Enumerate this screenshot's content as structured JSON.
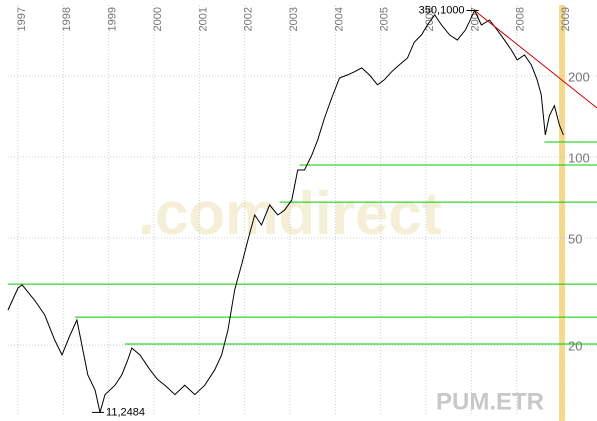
{
  "chart_data": {
    "type": "line",
    "symbol": "PUM.ETR",
    "watermark": ".comdirect",
    "log_scale": true,
    "grid": true,
    "color": "#000000",
    "x": [
      1996.78,
      1997.0,
      1997.09,
      1997.37,
      1997.59,
      1997.81,
      1997.97,
      1998.15,
      1998.3,
      1998.41,
      1998.54,
      1998.7,
      1998.81,
      1998.92,
      1999.14,
      1999.29,
      1999.42,
      1999.51,
      1999.69,
      1999.91,
      2000.08,
      2000.24,
      2000.46,
      2000.68,
      2000.9,
      2001.12,
      2001.34,
      2001.49,
      2001.63,
      2001.78,
      2001.93,
      2002.07,
      2002.22,
      2002.37,
      2002.55,
      2002.73,
      2002.88,
      2003.04,
      2003.17,
      2003.32,
      2003.48,
      2003.61,
      2003.76,
      2003.92,
      2004.09,
      2004.27,
      2004.42,
      2004.58,
      2004.75,
      2004.93,
      2005.08,
      2005.24,
      2005.41,
      2005.59,
      2005.74,
      2005.9,
      2006.03,
      2006.19,
      2006.34,
      2006.52,
      2006.69,
      2006.87,
      2007.07,
      2007.22,
      2007.4,
      2007.57,
      2007.73,
      2007.88,
      2008.01,
      2008.17,
      2008.32,
      2008.45,
      2008.54,
      2008.63,
      2008.72,
      2008.83,
      2008.94,
      2009.03
    ],
    "values": [
      27.0,
      32.6,
      33.5,
      29.3,
      25.9,
      20.9,
      18.4,
      21.8,
      24.8,
      20.0,
      15.5,
      13.6,
      11.2484,
      13.1,
      14.2,
      15.5,
      17.6,
      19.5,
      18.4,
      16.2,
      14.9,
      14.2,
      13.1,
      14.2,
      13.1,
      14.2,
      16.2,
      18.4,
      22.7,
      32.1,
      39.7,
      49.1,
      60.9,
      55.9,
      66.3,
      60.9,
      63.5,
      69.2,
      89.5,
      89.5,
      101.7,
      115.7,
      139.6,
      165.7,
      196.6,
      201.9,
      207.2,
      214.3,
      201.9,
      185.5,
      193.5,
      207.2,
      219.8,
      233.2,
      267.2,
      284.1,
      309.4,
      337.1,
      309.4,
      284.1,
      271.7,
      296.5,
      350.1,
      309.4,
      322.7,
      296.5,
      271.7,
      249.9,
      229.5,
      239.3,
      219.8,
      193.5,
      170.6,
      120.7,
      142.3,
      155.1,
      131.5,
      120.7
    ],
    "xlim": [
      1996.78,
      2009.77
    ],
    "xticks": [
      1997,
      1998,
      1999,
      2000,
      2001,
      2002,
      2003,
      2004,
      2005,
      2006,
      2007,
      2008,
      2009
    ],
    "ylim": [
      11,
      367
    ],
    "yticks": [
      20,
      50,
      100,
      200
    ],
    "annotations": [
      {
        "text": "350,1000",
        "x": 2007.07,
        "value": 350.1
      },
      {
        "text": "11,2484",
        "x": 1998.81,
        "value": 11.2484
      }
    ],
    "support_lines": {
      "color": "#00cc00",
      "lines": [
        {
          "value": 113.7,
          "from": 2008.61
        },
        {
          "value": 93.4,
          "from": 2003.21
        },
        {
          "value": 68.0,
          "from": 2002.77
        },
        {
          "value": 33.7,
          "from": 1996.78
        },
        {
          "value": 25.4,
          "from": 1998.26
        },
        {
          "value": 20.2,
          "from": 1999.36
        }
      ]
    },
    "trendline": {
      "color": "#cc0000",
      "x": [
        2007.07,
        2009.77
      ],
      "values": [
        350.1,
        152
      ]
    },
    "highlight": {
      "x": 2009.0,
      "color": "#f7d98a"
    }
  }
}
